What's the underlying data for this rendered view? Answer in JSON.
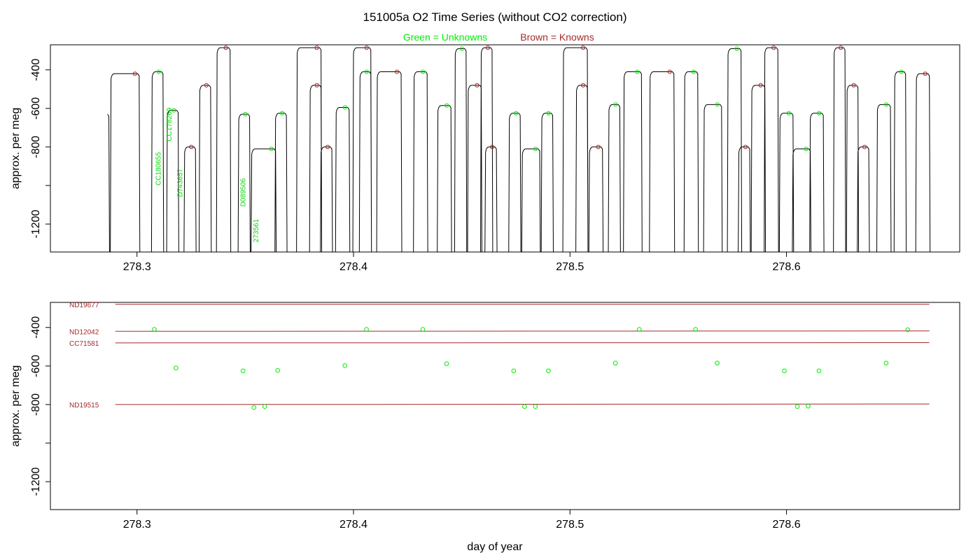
{
  "title": "151005a   O2 Time Series (without CO2 correction)",
  "legend": {
    "unknowns": "Green = Unknowns",
    "knowns": "Brown = Knowns"
  },
  "colors": {
    "unknown": "#00ee00",
    "known": "#a52a2a",
    "trace": "#000000"
  },
  "chart_data": [
    {
      "type": "line",
      "panel": "top",
      "title": "151005a   O2 Time Series (without CO2 correction)",
      "xlabel": "",
      "ylabel": "approx. per meg",
      "xlim": [
        278.26,
        278.68
      ],
      "ylim": [
        -1345,
        -270
      ],
      "x_ticks": [
        "278.3",
        "278.4",
        "278.5",
        "278.6"
      ],
      "x_tick_values": [
        278.3,
        278.4,
        278.5,
        278.6
      ],
      "y_ticks": [
        "-400",
        "-600",
        "-800",
        "",
        "-1200"
      ],
      "y_tick_values": [
        -400,
        -600,
        -800,
        -1000,
        -1200
      ],
      "segments": [
        [
          278.288,
          278.301,
          -420,
          "k"
        ],
        [
          278.307,
          278.312,
          -410,
          "u"
        ],
        [
          278.314,
          278.319,
          -610,
          "u"
        ],
        [
          278.322,
          278.327,
          -800,
          "k"
        ],
        [
          278.329,
          278.334,
          -480,
          "k"
        ],
        [
          278.337,
          278.343,
          -285,
          "k"
        ],
        [
          278.347,
          278.352,
          -630,
          "u"
        ],
        [
          278.353,
          278.364,
          -810,
          "u"
        ],
        [
          278.364,
          278.369,
          -625,
          "u"
        ],
        [
          278.374,
          278.385,
          -285,
          "k"
        ],
        [
          278.38,
          278.385,
          -480,
          "k"
        ],
        [
          278.385,
          278.39,
          -800,
          "k"
        ],
        [
          278.392,
          278.398,
          -595,
          "u"
        ],
        [
          278.4,
          278.408,
          -285,
          "k"
        ],
        [
          278.403,
          278.408,
          -410,
          "u"
        ],
        [
          278.411,
          278.422,
          -410,
          "k"
        ],
        [
          278.428,
          278.434,
          -410,
          "u"
        ],
        [
          278.439,
          278.445,
          -585,
          "u"
        ],
        [
          278.447,
          278.452,
          -290,
          "u"
        ],
        [
          278.453,
          278.459,
          -480,
          "k"
        ],
        [
          278.459,
          278.464,
          -285,
          "k"
        ],
        [
          278.461,
          278.466,
          -800,
          "k"
        ],
        [
          278.472,
          278.477,
          -625,
          "u"
        ],
        [
          278.478,
          278.486,
          -810,
          "u"
        ],
        [
          278.487,
          278.492,
          -625,
          "u"
        ],
        [
          278.497,
          278.508,
          -285,
          "k"
        ],
        [
          278.503,
          278.508,
          -480,
          "k"
        ],
        [
          278.509,
          278.515,
          -800,
          "k"
        ],
        [
          278.518,
          278.523,
          -580,
          "u"
        ],
        [
          278.525,
          278.533,
          -410,
          "u"
        ],
        [
          278.537,
          278.548,
          -410,
          "k"
        ],
        [
          278.553,
          278.559,
          -410,
          "u"
        ],
        [
          278.562,
          278.57,
          -580,
          "u"
        ],
        [
          278.573,
          278.579,
          -290,
          "u"
        ],
        [
          278.578,
          278.583,
          -800,
          "k"
        ],
        [
          278.584,
          278.59,
          -480,
          "k"
        ],
        [
          278.59,
          278.596,
          -285,
          "k"
        ],
        [
          278.597,
          278.603,
          -625,
          "u"
        ],
        [
          278.603,
          278.611,
          -810,
          "u"
        ],
        [
          278.611,
          278.617,
          -625,
          "u"
        ],
        [
          278.622,
          278.627,
          -285,
          "k"
        ],
        [
          278.628,
          278.633,
          -480,
          "k"
        ],
        [
          278.633,
          278.638,
          -800,
          "k"
        ],
        [
          278.642,
          278.648,
          -580,
          "u"
        ],
        [
          278.65,
          278.655,
          -410,
          "u"
        ],
        [
          278.66,
          278.666,
          -420,
          "k"
        ]
      ],
      "sample_labels": [
        {
          "text": "CC180655",
          "x": 278.311,
          "y": -1000
        },
        {
          "text": "CC178269",
          "x": 278.316,
          "y": -770
        },
        {
          "text": "D743657",
          "x": 278.321,
          "y": -1060
        },
        {
          "text": "D089506",
          "x": 278.35,
          "y": -1110
        },
        {
          "text": "273561",
          "x": 278.356,
          "y": -1295
        }
      ]
    },
    {
      "type": "scatter",
      "panel": "bottom",
      "xlabel": "day of year",
      "ylabel": "approx. per meg",
      "xlim": [
        278.26,
        278.68
      ],
      "ylim": [
        -1345,
        -270
      ],
      "x_ticks": [
        "278.3",
        "278.4",
        "278.5",
        "278.6"
      ],
      "x_tick_values": [
        278.3,
        278.4,
        278.5,
        278.6
      ],
      "y_ticks": [
        "-400",
        "-600",
        "-800",
        "",
        "-1200"
      ],
      "y_tick_values": [
        -400,
        -600,
        -800,
        -1000,
        -1200
      ],
      "reference_lines": [
        {
          "name": "ND19677",
          "x": [
            278.29,
            278.666
          ],
          "y": [
            -280,
            -280
          ]
        },
        {
          "name": "ND12042",
          "x": [
            278.29,
            278.666
          ],
          "y": [
            -420,
            -418
          ]
        },
        {
          "name": "CC71581",
          "x": [
            278.29,
            278.666
          ],
          "y": [
            -480,
            -479
          ]
        },
        {
          "name": "ND19515",
          "x": [
            278.29,
            278.666
          ],
          "y": [
            -800,
            -797
          ]
        }
      ],
      "unknowns": {
        "x": [
          278.308,
          278.318,
          278.349,
          278.354,
          278.359,
          278.365,
          278.396,
          278.406,
          278.432,
          278.443,
          278.474,
          278.479,
          278.484,
          278.49,
          278.521,
          278.532,
          278.558,
          278.568,
          278.599,
          278.605,
          278.61,
          278.615,
          278.646,
          278.656
        ],
        "y": [
          -410,
          -610,
          -625,
          -815,
          -810,
          -623,
          -598,
          -410,
          -410,
          -588,
          -625,
          -810,
          -810,
          -625,
          -585,
          -410,
          -410,
          -585,
          -625,
          -810,
          -808,
          -625,
          -585,
          -412
        ]
      }
    }
  ]
}
